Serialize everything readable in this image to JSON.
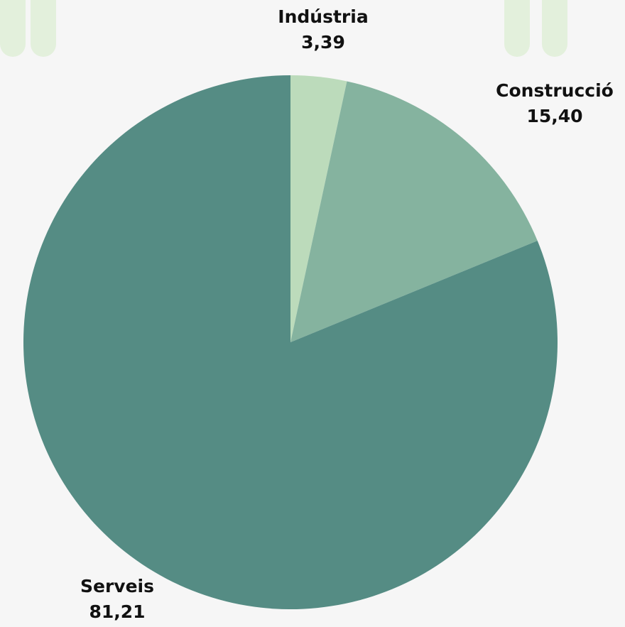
{
  "chart_data": {
    "type": "pie",
    "title": "",
    "slices": [
      {
        "label": "Indústria",
        "display_value": "3,39",
        "value": 3.39,
        "color": "#bcdbbb"
      },
      {
        "label": "Construcció",
        "display_value": "15,40",
        "value": 15.4,
        "color": "#85b39f"
      },
      {
        "label": "Serveis",
        "display_value": "81,21",
        "value": 81.21,
        "color": "#558c84"
      }
    ],
    "start_angle_deg": 0,
    "direction": "clockwise",
    "legend": "none",
    "background": "#f6f6f6"
  }
}
